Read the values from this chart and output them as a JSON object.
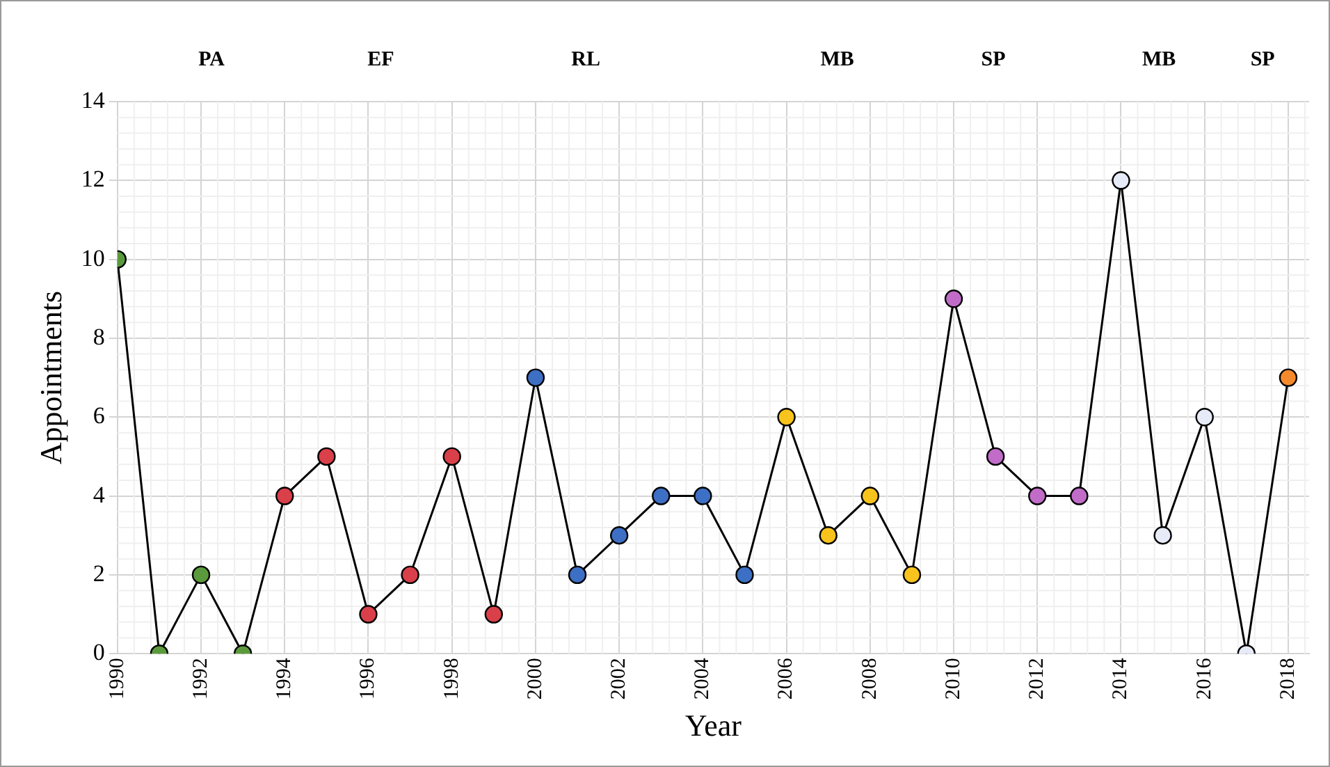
{
  "chart_data": {
    "type": "line",
    "xlabel": "Year",
    "ylabel": "Appointments",
    "x": [
      1990,
      1991,
      1992,
      1993,
      1994,
      1995,
      1996,
      1997,
      1998,
      1999,
      2000,
      2001,
      2002,
      2003,
      2004,
      2005,
      2006,
      2007,
      2008,
      2009,
      2010,
      2011,
      2012,
      2013,
      2014,
      2015,
      2016,
      2017,
      2018
    ],
    "series": [
      {
        "color": "#000000",
        "values": [
          10,
          0,
          2,
          0,
          4,
          5,
          1,
          2,
          5,
          1,
          7,
          2,
          3,
          4,
          4,
          2,
          6,
          3,
          4,
          2,
          9,
          5,
          4,
          4,
          12,
          3,
          6,
          0,
          7
        ],
        "colors": [
          "#5b9a3c",
          "#5b9a3c",
          "#5b9a3c",
          "#5b9a3c",
          "#d9404a",
          "#d9404a",
          "#d9404a",
          "#d9404a",
          "#d9404a",
          "#d9404a",
          "#3d6fc4",
          "#3d6fc4",
          "#3d6fc4",
          "#3d6fc4",
          "#3d6fc4",
          "#3d6fc4",
          "#f7c31c",
          "#f7c31c",
          "#f7c31c",
          "#f7c31c",
          "#c06cc8",
          "#c06cc8",
          "#c06cc8",
          "#c06cc8",
          "#e6ebf7",
          "#e6ebf7",
          "#e6ebf7",
          "#e6ebf7",
          "#f58a2c"
        ]
      }
    ],
    "xlim": [
      1990,
      2018.5
    ],
    "xticks": [
      1990,
      1992,
      1994,
      1996,
      1998,
      2000,
      2002,
      2004,
      2006,
      2008,
      2010,
      2012,
      2014,
      2016,
      2018
    ],
    "ylim": [
      0,
      14
    ],
    "yticks": [
      0,
      2,
      4,
      6,
      8,
      10,
      12,
      14
    ],
    "grid": true,
    "legend": false,
    "marker": "circle",
    "line_style": "solid",
    "annotations": [
      "PA",
      "EF",
      "RL",
      "MB",
      "SP",
      "MB",
      "SP"
    ]
  }
}
